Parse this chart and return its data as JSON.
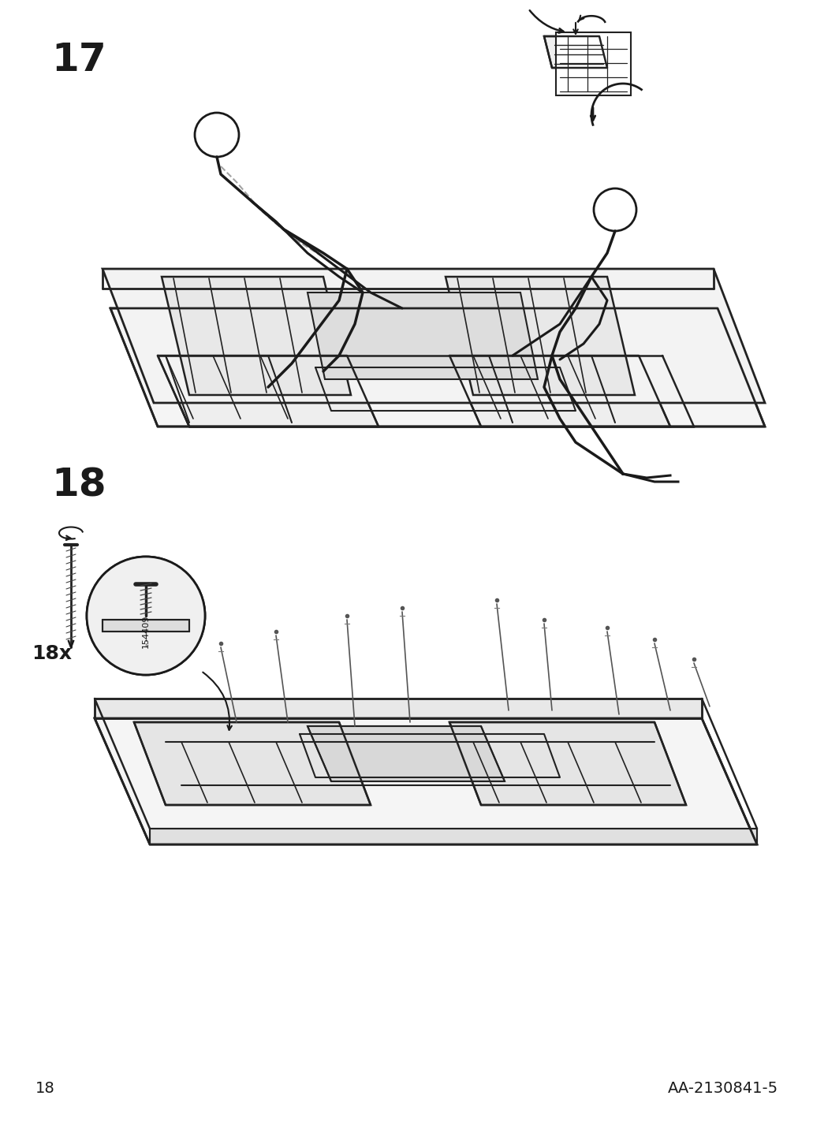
{
  "page_number": "18",
  "doc_number": "AA-2130841-5",
  "step17_label": "17",
  "step18_label": "18",
  "screw_count": "18x",
  "part_number": "154409",
  "background_color": "#ffffff",
  "ink_color": "#1a1a1a",
  "line_color": "#222222",
  "step_label_fontsize": 36,
  "page_num_fontsize": 14,
  "count_fontsize": 18
}
